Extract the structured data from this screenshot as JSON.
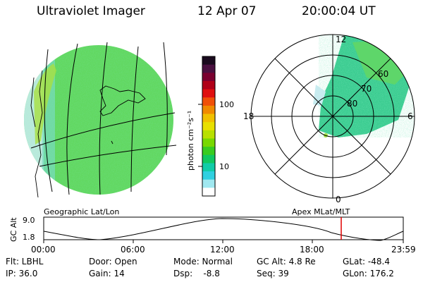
{
  "header": {
    "title": "Ultraviolet Imager",
    "date": "12 Apr 07",
    "time": "20:00:04 UT"
  },
  "colorbar": {
    "unit_label": "photon cm⁻²s⁻¹",
    "ticks": [
      "100",
      "10"
    ],
    "colors": [
      "#1a0a1e",
      "#4a1040",
      "#7a0030",
      "#b00018",
      "#e01010",
      "#f05008",
      "#f08a00",
      "#f0c000",
      "#e8e000",
      "#b8e000",
      "#78d800",
      "#38cc20",
      "#10c860",
      "#10cca8",
      "#30d0e0",
      "#a0e8f0",
      "#ffffff"
    ]
  },
  "polar": {
    "hour_labels": [
      "12",
      "18",
      "6",
      "0"
    ],
    "lat_labels": [
      "60",
      "70",
      "80"
    ]
  },
  "labels": {
    "geo": "Geographic Lat/Lon",
    "apex": "Apex MLat/MLT"
  },
  "alt_plot": {
    "axis_title": "GC Alt",
    "y_ticks": [
      "9.0",
      "1.8"
    ],
    "x_ticks": [
      "00:00",
      "06:00",
      "12:00",
      "18:00",
      "23:59"
    ],
    "marker_color": "#e00000"
  },
  "info": {
    "flt": "Flt: LBHL",
    "ip": "IP: 36.0",
    "door": "Door: Open",
    "gain": "Gain: 14",
    "mode": "Mode: Normal",
    "dsp": "Dsp:    -8.8",
    "gc_alt": "GC Alt: 4.8 Re",
    "seq": "Seq: 39",
    "glat": "GLat: -48.4",
    "glon": "GLon: 176.2"
  }
}
